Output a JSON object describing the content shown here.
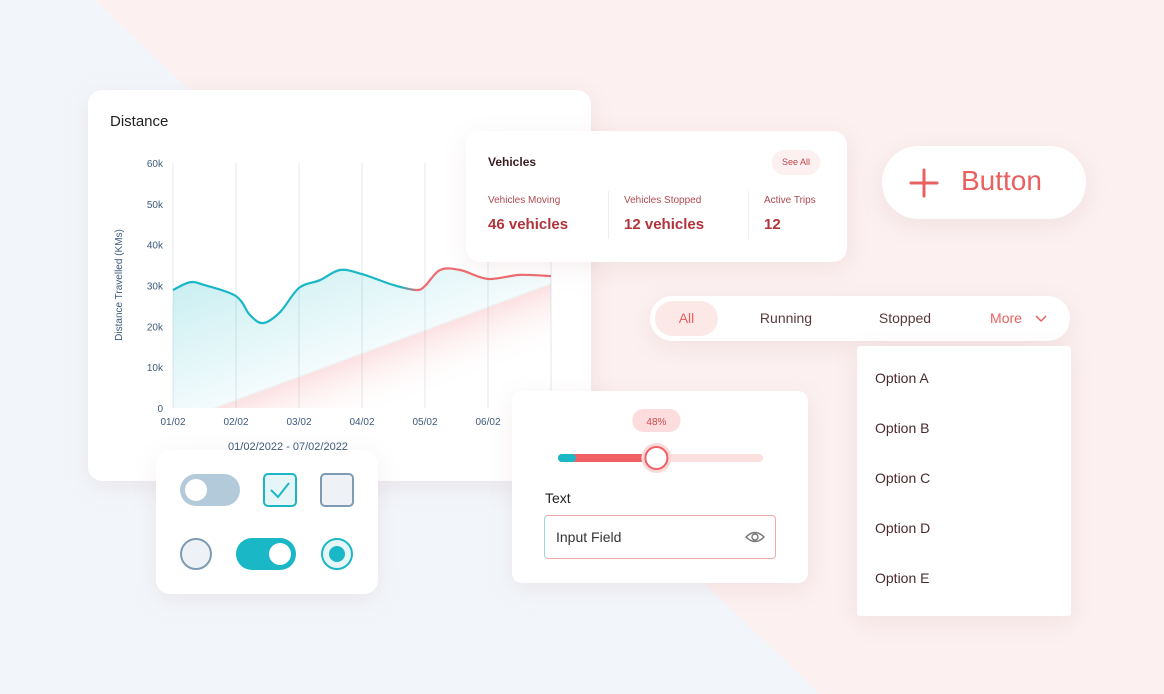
{
  "chart_data": {
    "type": "line",
    "title": "Distance",
    "y_label": "Distance Travelled (KMs)",
    "x_label": "01/02/2022 - 07/02/2022",
    "x": [
      0,
      0.27,
      0.5,
      1,
      1.22,
      1.43,
      1.7,
      2,
      2.33,
      2.65,
      3,
      3.5,
      3.86,
      4,
      4.24,
      4.56,
      5,
      5.5,
      6
    ],
    "series": [
      {
        "values": [
          28900,
          30800,
          30100,
          27400,
          22800,
          20800,
          23500,
          29400,
          31300,
          33800,
          32800,
          30100,
          28900,
          29900,
          33800,
          33800,
          31600,
          32600,
          32300
        ]
      }
    ],
    "color": "#1ab7c6",
    "color2": "#ef6b6f",
    "xlim": [
      0,
      6
    ],
    "xticks": [
      {
        "value": 0,
        "label": "01/02"
      },
      {
        "value": 1,
        "label": "02/02"
      },
      {
        "value": 2,
        "label": "03/02"
      },
      {
        "value": 3,
        "label": "04/02"
      },
      {
        "value": 4,
        "label": "05/02"
      },
      {
        "value": 5,
        "label": "06/02"
      }
    ],
    "ylim": [
      0,
      60000
    ],
    "yticks": [
      0,
      {
        "value": 10000,
        "label": "10k"
      },
      {
        "value": 20000,
        "label": "20k"
      },
      {
        "value": 30000,
        "label": "30k"
      },
      {
        "value": 40000,
        "label": "40k"
      },
      {
        "value": 50000,
        "label": "50k"
      },
      {
        "value": 60000,
        "label": "60k"
      }
    ],
    "grid": true
  },
  "vehicles": {
    "title": "Vehicles",
    "link": "See All",
    "stats": [
      {
        "label": "Vehicles Moving",
        "value": "46 vehicles"
      },
      {
        "label": "Vehicles Stopped",
        "value": "12 vehicles"
      },
      {
        "label": "Active Trips",
        "value": "12"
      }
    ]
  },
  "button": {
    "label": "Button"
  },
  "tabs": {
    "items": [
      "All",
      "Running",
      "Stopped",
      "More"
    ]
  },
  "dropdown": {
    "options": [
      "Option A",
      "Option B",
      "Option C",
      "Option D",
      "Option E"
    ]
  },
  "slider": {
    "value": 48,
    "label": "48%",
    "range": [
      0,
      100
    ]
  },
  "input": {
    "label": "Text",
    "placeholder": "Input Field"
  }
}
